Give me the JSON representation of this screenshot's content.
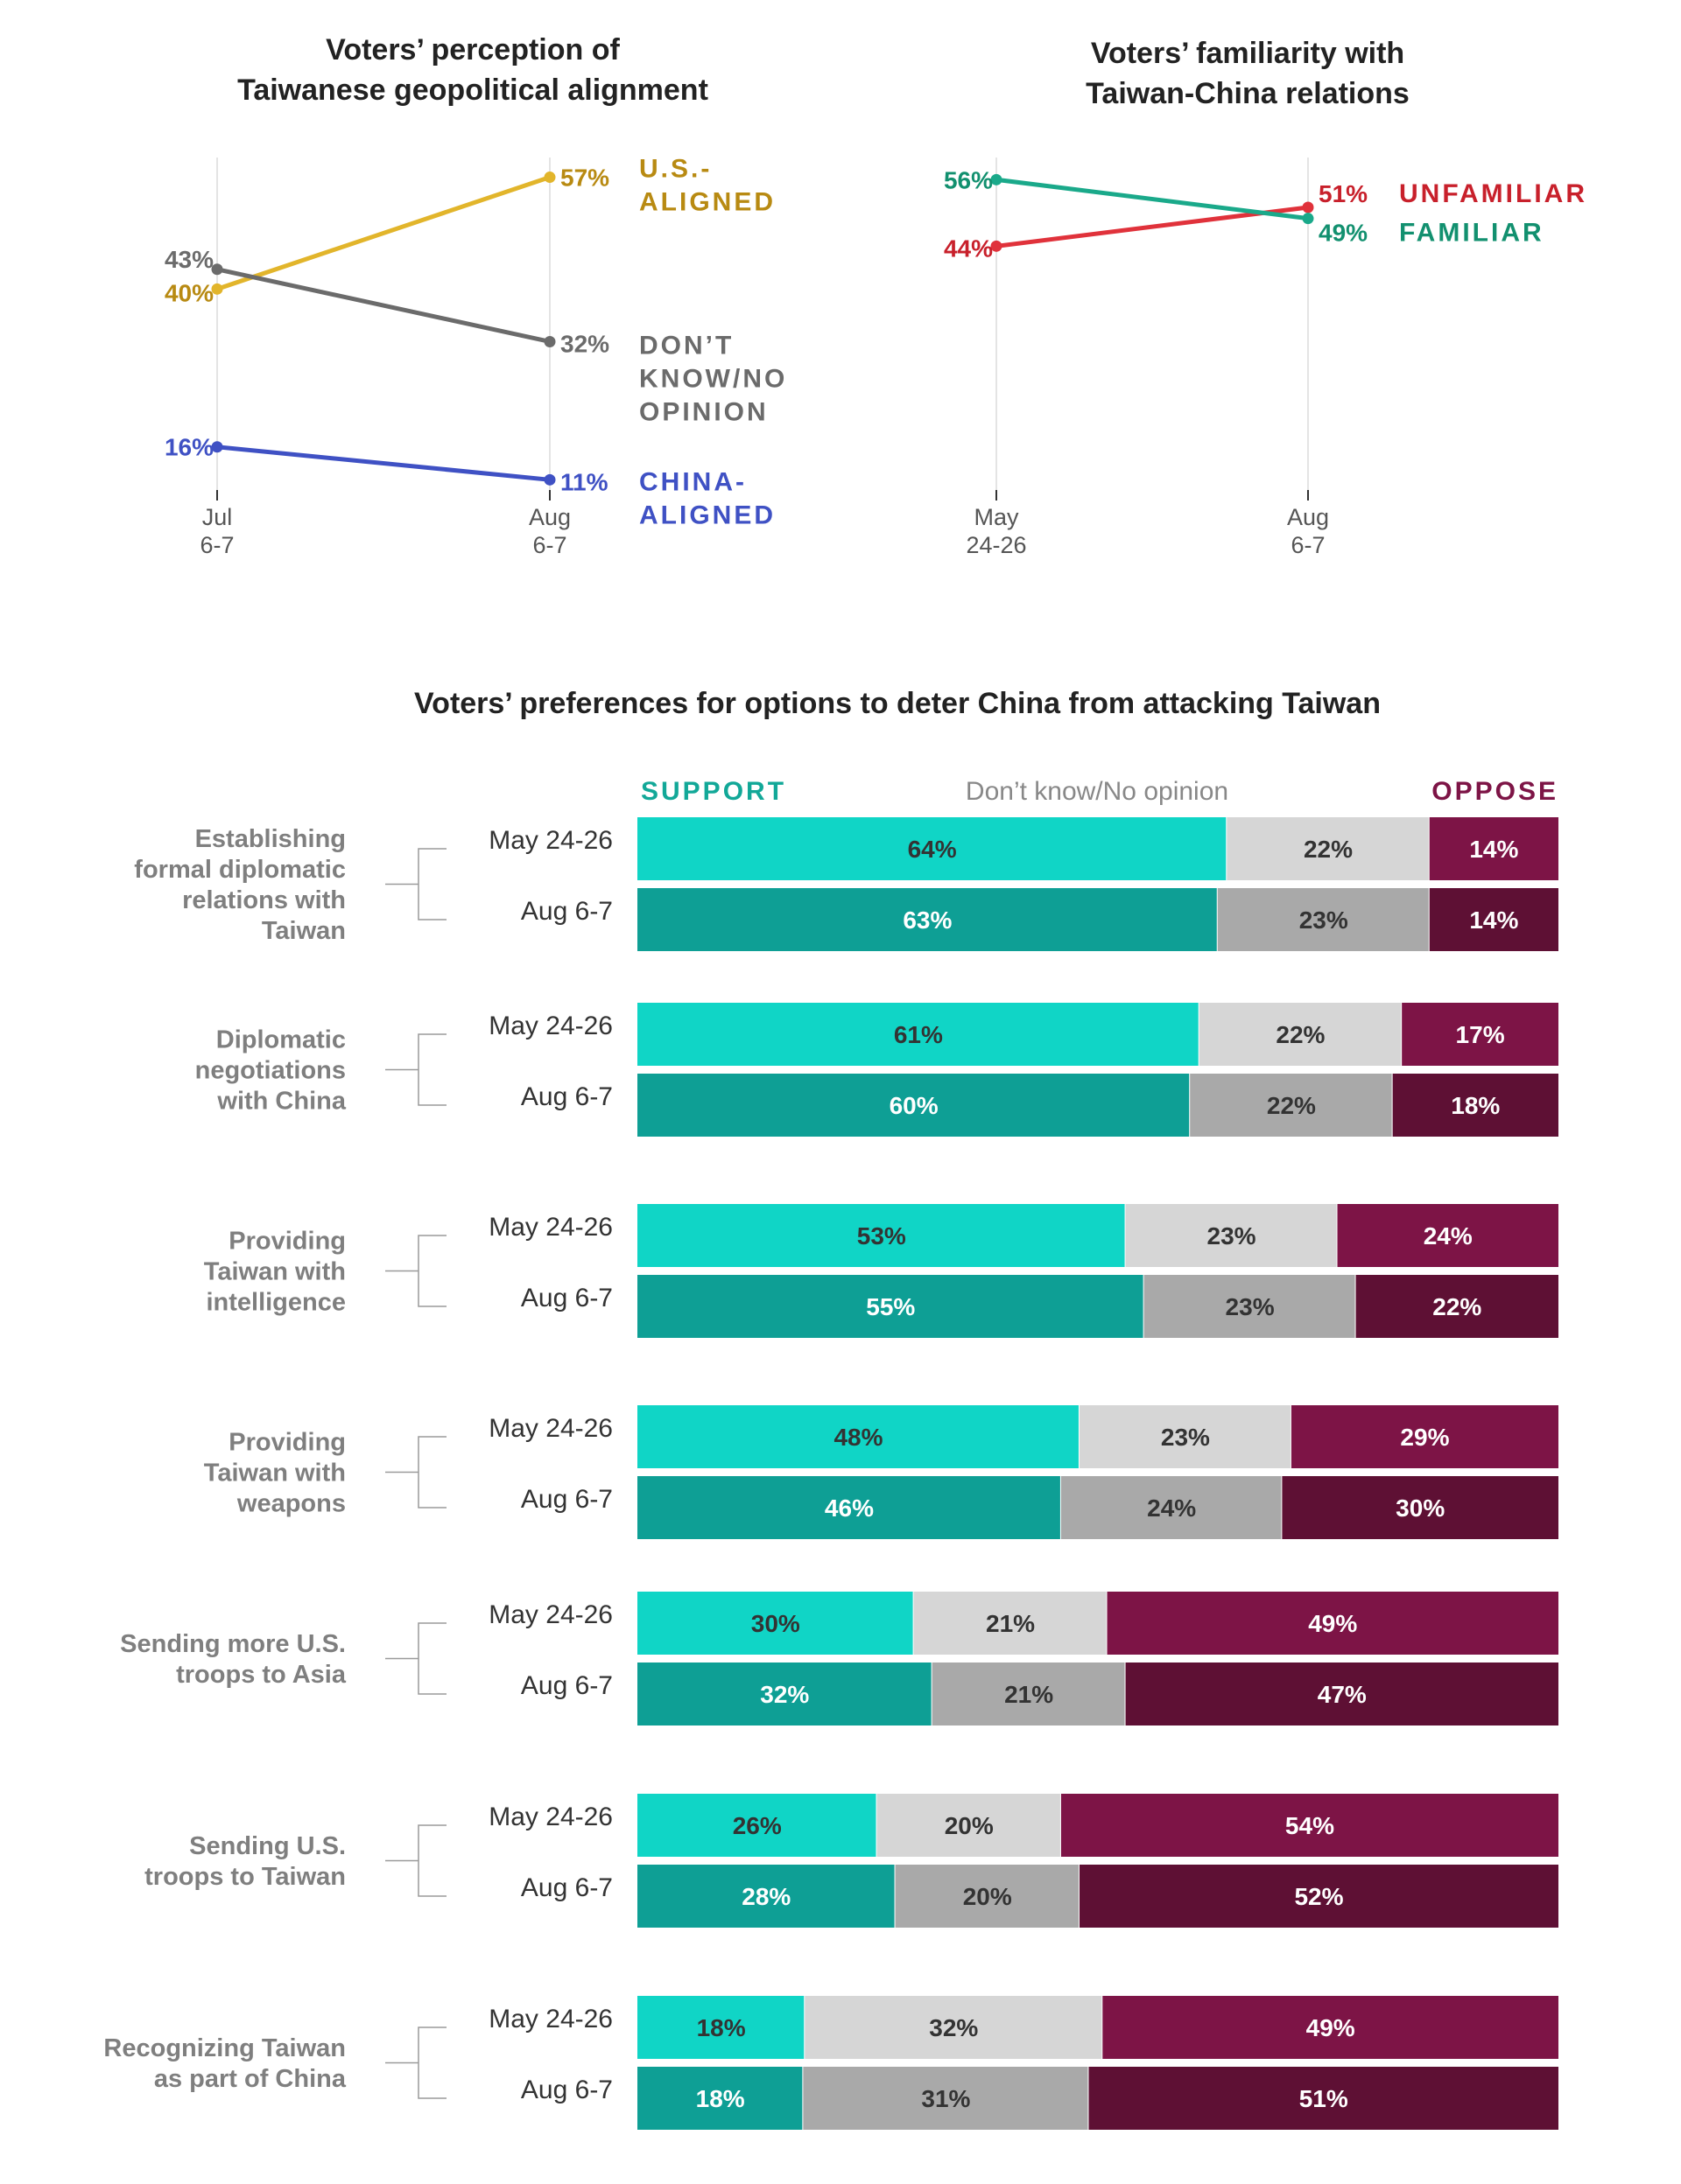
{
  "chart_data": [
    {
      "type": "line",
      "title": [
        "Voters’ perception of",
        "Taiwanese geopolitical alignment"
      ],
      "x": [
        [
          "Jul",
          "6-7"
        ],
        [
          "Aug",
          "6-7"
        ]
      ],
      "ylim": [
        0,
        60
      ],
      "series": [
        {
          "name": "U.S.-ALIGNED",
          "label_lines": [
            "U.S.-",
            "ALIGNED"
          ],
          "values": [
            40,
            57
          ],
          "value_labels": [
            "40%",
            "57%"
          ],
          "color": "#e2b52b",
          "label_color": "#b88a12"
        },
        {
          "name": "DON’T KNOW/NO OPINION",
          "label_lines": [
            "DON’T",
            "KNOW/NO",
            "OPINION"
          ],
          "values": [
            43,
            32
          ],
          "value_labels": [
            "43%",
            "32%"
          ],
          "color": "#6b6b6b",
          "label_color": "#6b6b6b"
        },
        {
          "name": "CHINA-ALIGNED",
          "label_lines": [
            "CHINA-",
            "ALIGNED"
          ],
          "values": [
            16,
            11
          ],
          "value_labels": [
            "16%",
            "11%"
          ],
          "color": "#3f51c4",
          "label_color": "#3f51c4"
        }
      ]
    },
    {
      "type": "line",
      "title": [
        "Voters’ familiarity with",
        "Taiwan-China relations"
      ],
      "x": [
        [
          "May",
          "24-26"
        ],
        [
          "Aug",
          "6-7"
        ]
      ],
      "ylim": [
        0,
        60
      ],
      "series": [
        {
          "name": "UNFAMILIAR",
          "label_lines": [
            "UNFAMILIAR"
          ],
          "values": [
            44,
            51
          ],
          "value_labels": [
            "44%",
            "51%"
          ],
          "color": "#e0323b",
          "label_color": "#c8202b"
        },
        {
          "name": "FAMILIAR",
          "label_lines": [
            "FAMILIAR"
          ],
          "values": [
            56,
            49
          ],
          "value_labels": [
            "56%",
            "49%"
          ],
          "color": "#1aa98a",
          "label_color": "#12906f"
        }
      ]
    },
    {
      "type": "bar",
      "stacked": true,
      "orientation": "horizontal",
      "title": "Voters’ preferences for options to deter China from attacking Taiwan",
      "legend": [
        "SUPPORT",
        "Don’t know/No opinion",
        "OPPOSE"
      ],
      "colors": {
        "support_may": "#10d5c6",
        "support_aug": "#0e9f95",
        "dk_may": "#d6d6d6",
        "dk_aug": "#a9a9a9",
        "oppose_may": "#7d1446",
        "oppose_aug": "#5e1034"
      },
      "groups": [
        {
          "label": [
            "Establishing",
            "formal diplomatic",
            "relations with",
            "Taiwan"
          ],
          "rows": [
            {
              "date": "May 24-26",
              "values": [
                64,
                22,
                14
              ],
              "labels": [
                "64%",
                "22%",
                "14%"
              ]
            },
            {
              "date": "Aug 6-7",
              "values": [
                63,
                23,
                14
              ],
              "labels": [
                "63%",
                "23%",
                "14%"
              ]
            }
          ]
        },
        {
          "label": [
            "Diplomatic",
            "negotiations",
            "with China"
          ],
          "rows": [
            {
              "date": "May 24-26",
              "values": [
                61,
                22,
                17
              ],
              "labels": [
                "61%",
                "22%",
                "17%"
              ]
            },
            {
              "date": "Aug 6-7",
              "values": [
                60,
                22,
                18
              ],
              "labels": [
                "60%",
                "22%",
                "18%"
              ]
            }
          ]
        },
        {
          "label": [
            "Providing",
            "Taiwan with",
            "intelligence"
          ],
          "rows": [
            {
              "date": "May 24-26",
              "values": [
                53,
                23,
                24
              ],
              "labels": [
                "53%",
                "23%",
                "24%"
              ]
            },
            {
              "date": "Aug 6-7",
              "values": [
                55,
                23,
                22
              ],
              "labels": [
                "55%",
                "23%",
                "22%"
              ]
            }
          ]
        },
        {
          "label": [
            "Providing",
            "Taiwan with",
            "weapons"
          ],
          "rows": [
            {
              "date": "May 24-26",
              "values": [
                48,
                23,
                29
              ],
              "labels": [
                "48%",
                "23%",
                "29%"
              ]
            },
            {
              "date": "Aug 6-7",
              "values": [
                46,
                24,
                30
              ],
              "labels": [
                "46%",
                "24%",
                "30%"
              ]
            }
          ]
        },
        {
          "label": [
            "Sending more U.S.",
            "troops to Asia"
          ],
          "rows": [
            {
              "date": "May 24-26",
              "values": [
                30,
                21,
                49
              ],
              "labels": [
                "30%",
                "21%",
                "49%"
              ]
            },
            {
              "date": "Aug 6-7",
              "values": [
                32,
                21,
                47
              ],
              "labels": [
                "32%",
                "21%",
                "47%"
              ]
            }
          ]
        },
        {
          "label": [
            "Sending U.S.",
            "troops to Taiwan"
          ],
          "rows": [
            {
              "date": "May 24-26",
              "values": [
                26,
                20,
                54
              ],
              "labels": [
                "26%",
                "20%",
                "54%"
              ]
            },
            {
              "date": "Aug 6-7",
              "values": [
                28,
                20,
                52
              ],
              "labels": [
                "28%",
                "20%",
                "52%"
              ]
            }
          ]
        },
        {
          "label": [
            "Recognizing Taiwan",
            "as part of China"
          ],
          "rows": [
            {
              "date": "May 24-26",
              "values": [
                18,
                32,
                49
              ],
              "labels": [
                "18%",
                "32%",
                "49%"
              ]
            },
            {
              "date": "Aug 6-7",
              "values": [
                18,
                31,
                51
              ],
              "labels": [
                "18%",
                "31%",
                "51%"
              ]
            }
          ]
        }
      ]
    }
  ]
}
